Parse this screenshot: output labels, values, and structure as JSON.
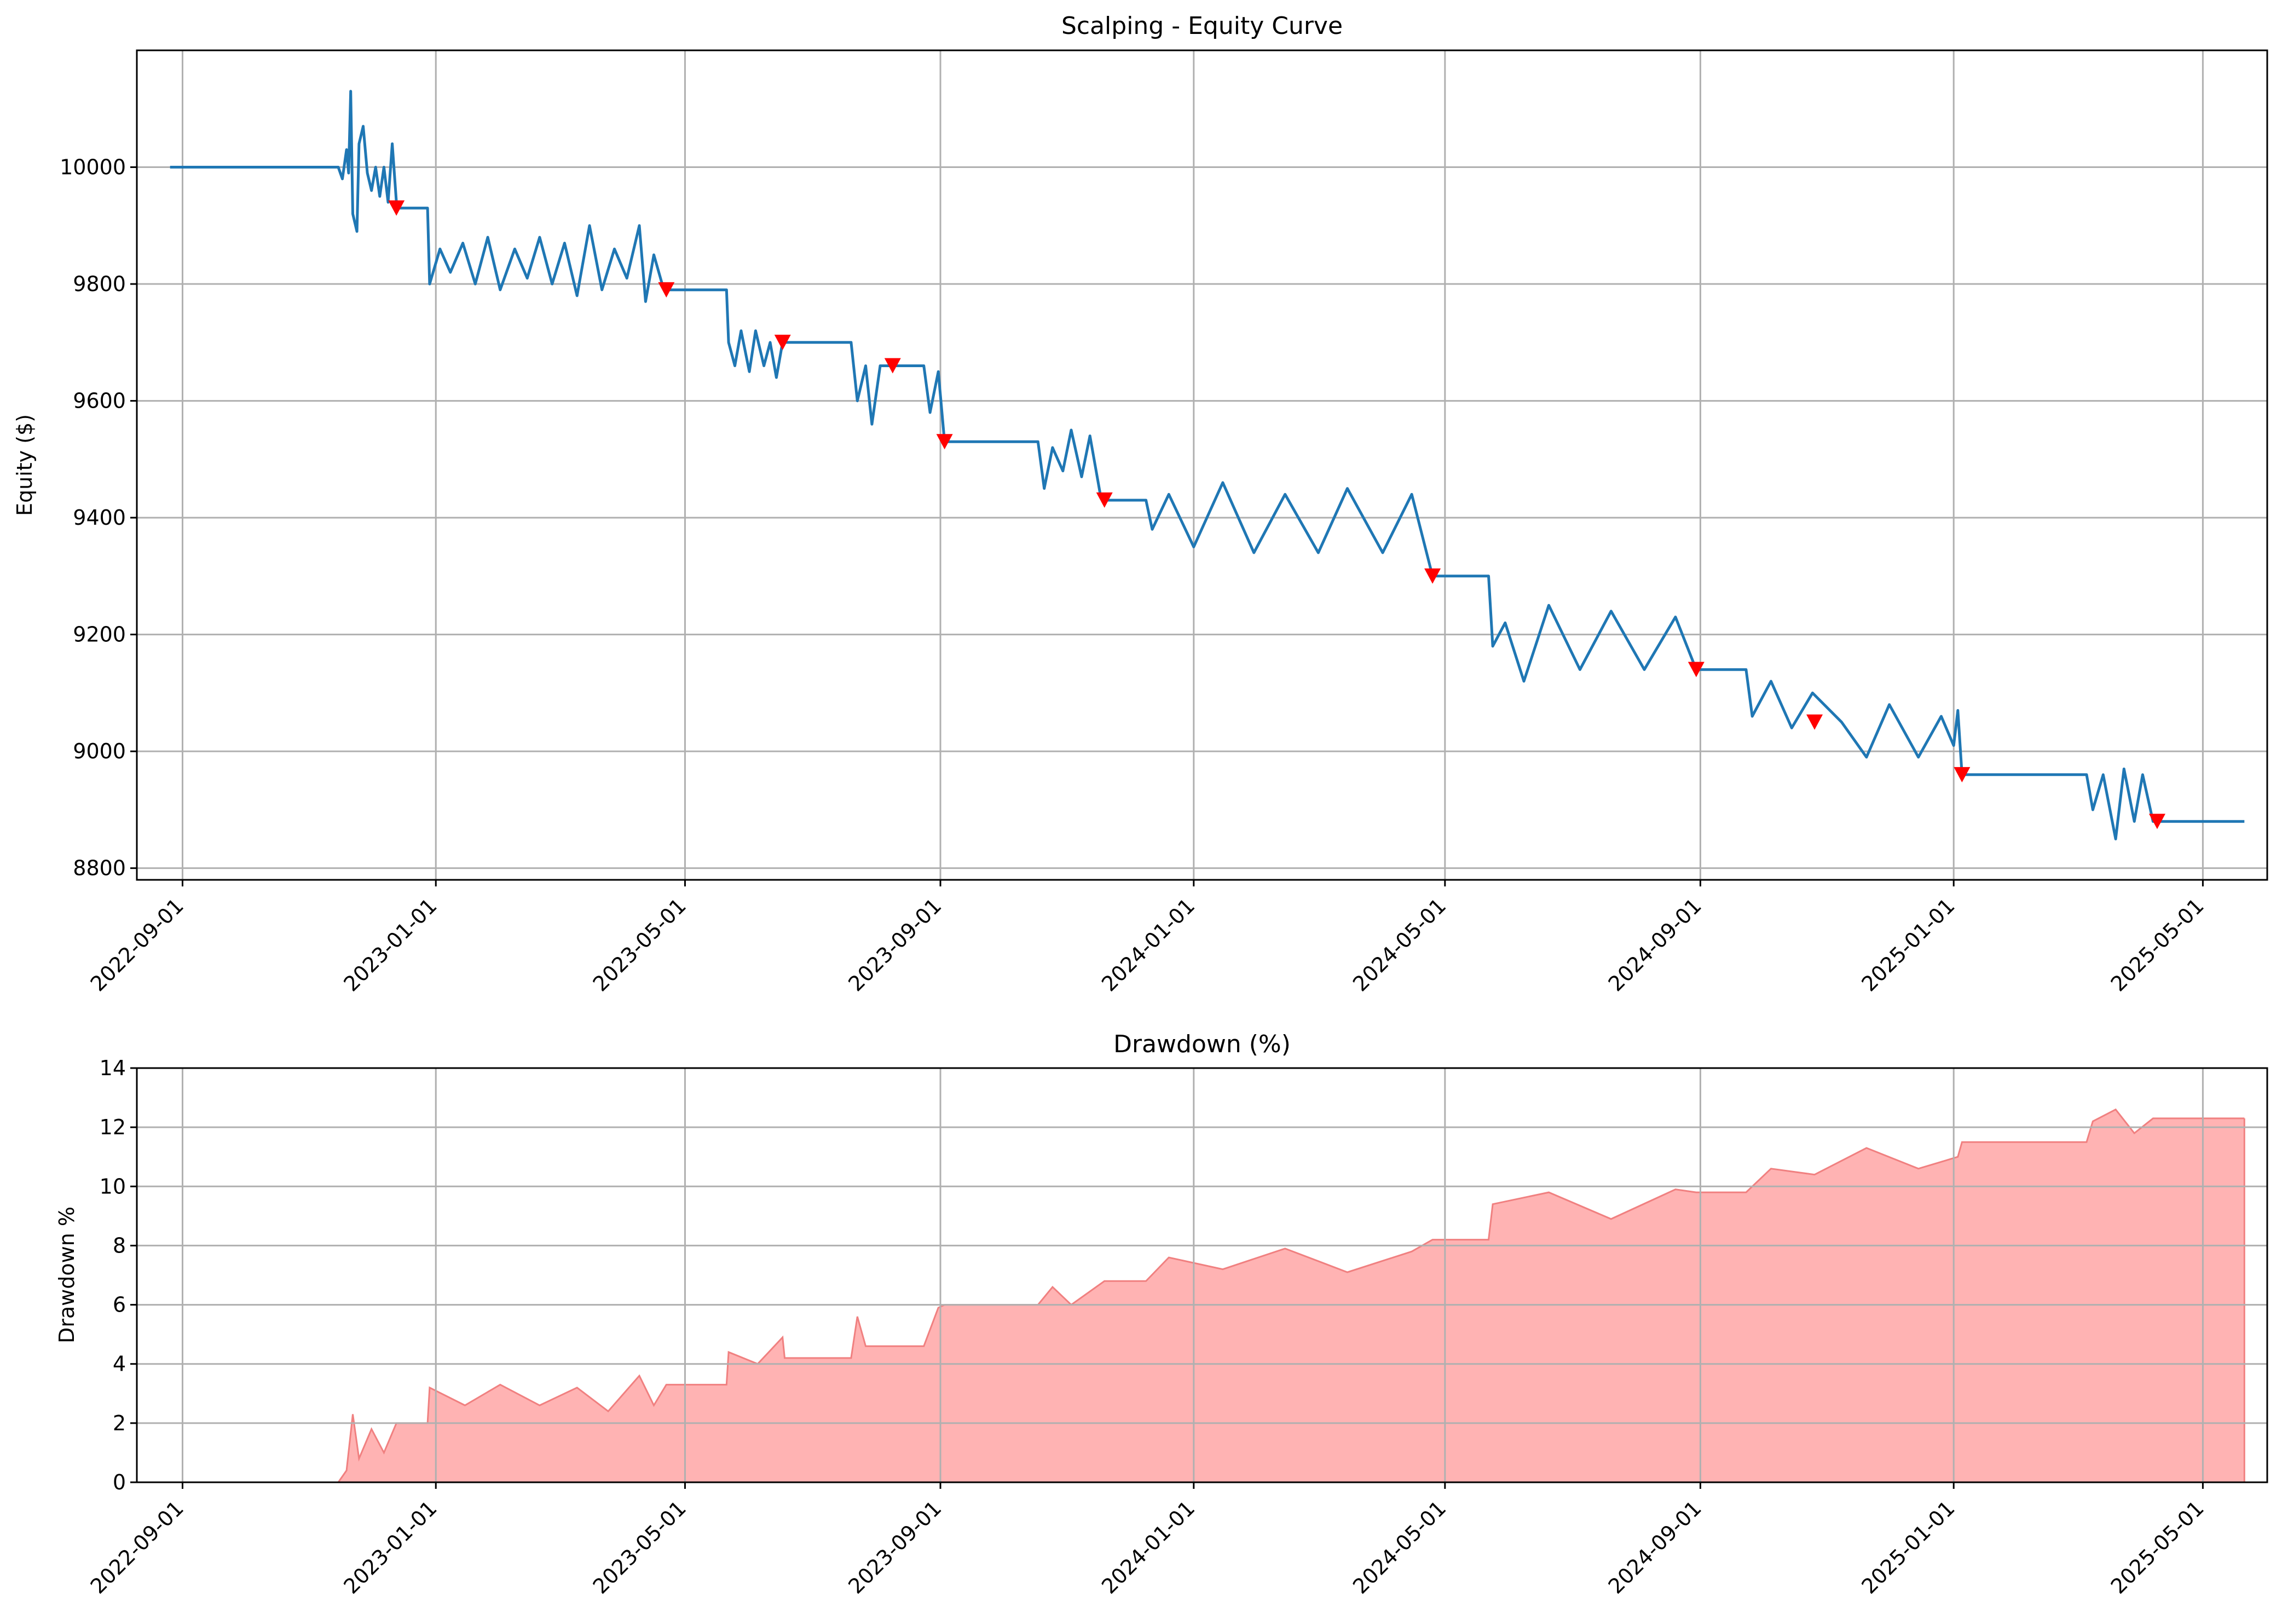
{
  "chart_data": [
    {
      "type": "line",
      "title": "Scalping - Equity Curve",
      "xlabel": "",
      "ylabel": "Equity ($)",
      "x_type": "date",
      "xlim": [
        "2022-08-10",
        "2025-06-01"
      ],
      "ylim": [
        8780,
        10200
      ],
      "x_ticks": [
        "2022-09-01",
        "2023-01-01",
        "2023-05-01",
        "2023-09-01",
        "2024-01-01",
        "2024-05-01",
        "2024-09-01",
        "2025-01-01",
        "2025-05-01"
      ],
      "y_ticks": [
        8800,
        9000,
        9200,
        9400,
        9600,
        9800,
        10000
      ],
      "grid": true,
      "legend": "none",
      "line_color": "#1f77b4",
      "marker_color": "#ff0000",
      "series": [
        {
          "values": [
            [
              "2022-08-26",
              10000
            ],
            [
              "2022-11-15",
              10000
            ],
            [
              "2022-11-17",
              9980
            ],
            [
              "2022-11-19",
              10030
            ],
            [
              "2022-11-20",
              9990
            ],
            [
              "2022-11-21",
              10130
            ],
            [
              "2022-11-22",
              9920
            ],
            [
              "2022-11-24",
              9890
            ],
            [
              "2022-11-25",
              10040
            ],
            [
              "2022-11-27",
              10070
            ],
            [
              "2022-11-29",
              9990
            ],
            [
              "2022-12-01",
              9960
            ],
            [
              "2022-12-03",
              10000
            ],
            [
              "2022-12-05",
              9950
            ],
            [
              "2022-12-07",
              10000
            ],
            [
              "2022-12-09",
              9940
            ],
            [
              "2022-12-11",
              10040
            ],
            [
              "2022-12-13",
              9940
            ],
            [
              "2022-12-14",
              9930
            ],
            [
              "2022-12-28",
              9930
            ],
            [
              "2022-12-29",
              9800
            ],
            [
              "2023-01-03",
              9860
            ],
            [
              "2023-01-08",
              9820
            ],
            [
              "2023-01-14",
              9870
            ],
            [
              "2023-01-20",
              9800
            ],
            [
              "2023-01-26",
              9880
            ],
            [
              "2023-02-01",
              9790
            ],
            [
              "2023-02-08",
              9860
            ],
            [
              "2023-02-14",
              9810
            ],
            [
              "2023-02-20",
              9880
            ],
            [
              "2023-02-26",
              9800
            ],
            [
              "2023-03-04",
              9870
            ],
            [
              "2023-03-10",
              9780
            ],
            [
              "2023-03-16",
              9900
            ],
            [
              "2023-03-22",
              9790
            ],
            [
              "2023-03-28",
              9860
            ],
            [
              "2023-04-03",
              9810
            ],
            [
              "2023-04-09",
              9900
            ],
            [
              "2023-04-12",
              9770
            ],
            [
              "2023-04-16",
              9850
            ],
            [
              "2023-04-20",
              9800
            ],
            [
              "2023-04-22",
              9790
            ],
            [
              "2023-05-21",
              9790
            ],
            [
              "2023-05-22",
              9700
            ],
            [
              "2023-05-25",
              9660
            ],
            [
              "2023-05-28",
              9720
            ],
            [
              "2023-06-01",
              9650
            ],
            [
              "2023-06-04",
              9720
            ],
            [
              "2023-06-08",
              9660
            ],
            [
              "2023-06-11",
              9700
            ],
            [
              "2023-06-14",
              9640
            ],
            [
              "2023-06-17",
              9700
            ],
            [
              "2023-07-20",
              9700
            ],
            [
              "2023-07-23",
              9600
            ],
            [
              "2023-07-27",
              9660
            ],
            [
              "2023-07-30",
              9560
            ],
            [
              "2023-08-03",
              9660
            ],
            [
              "2023-08-24",
              9660
            ],
            [
              "2023-08-27",
              9580
            ],
            [
              "2023-08-31",
              9650
            ],
            [
              "2023-09-03",
              9530
            ],
            [
              "2023-10-18",
              9530
            ],
            [
              "2023-10-21",
              9450
            ],
            [
              "2023-10-25",
              9520
            ],
            [
              "2023-10-30",
              9480
            ],
            [
              "2023-11-03",
              9550
            ],
            [
              "2023-11-08",
              9470
            ],
            [
              "2023-11-12",
              9540
            ],
            [
              "2023-11-17",
              9440
            ],
            [
              "2023-11-19",
              9430
            ],
            [
              "2023-12-09",
              9430
            ],
            [
              "2023-12-12",
              9380
            ],
            [
              "2023-12-20",
              9440
            ],
            [
              "2024-01-01",
              9350
            ],
            [
              "2024-01-15",
              9460
            ],
            [
              "2024-01-30",
              9340
            ],
            [
              "2024-02-14",
              9440
            ],
            [
              "2024-03-01",
              9340
            ],
            [
              "2024-03-15",
              9450
            ],
            [
              "2024-04-01",
              9340
            ],
            [
              "2024-04-15",
              9440
            ],
            [
              "2024-04-25",
              9300
            ],
            [
              "2024-05-22",
              9300
            ],
            [
              "2024-05-24",
              9180
            ],
            [
              "2024-05-30",
              9220
            ],
            [
              "2024-06-08",
              9120
            ],
            [
              "2024-06-20",
              9250
            ],
            [
              "2024-07-05",
              9140
            ],
            [
              "2024-07-20",
              9240
            ],
            [
              "2024-08-05",
              9140
            ],
            [
              "2024-08-20",
              9230
            ],
            [
              "2024-08-30",
              9140
            ],
            [
              "2024-09-23",
              9140
            ],
            [
              "2024-09-26",
              9060
            ],
            [
              "2024-10-05",
              9120
            ],
            [
              "2024-10-15",
              9040
            ],
            [
              "2024-10-25",
              9100
            ],
            [
              "2024-11-08",
              9050
            ],
            [
              "2024-11-20",
              8990
            ],
            [
              "2024-12-01",
              9080
            ],
            [
              "2024-12-15",
              8990
            ],
            [
              "2024-12-26",
              9060
            ],
            [
              "2025-01-01",
              9010
            ],
            [
              "2025-01-03",
              9070
            ],
            [
              "2025-01-05",
              8960
            ],
            [
              "2025-03-06",
              8960
            ],
            [
              "2025-03-09",
              8900
            ],
            [
              "2025-03-14",
              8960
            ],
            [
              "2025-03-20",
              8850
            ],
            [
              "2025-03-24",
              8970
            ],
            [
              "2025-03-29",
              8880
            ],
            [
              "2025-04-02",
              8960
            ],
            [
              "2025-04-07",
              8880
            ],
            [
              "2025-05-21",
              8880
            ]
          ]
        },
        {
          "markers": [
            [
              "2022-12-13",
              9930
            ],
            [
              "2023-04-22",
              9790
            ],
            [
              "2023-06-17",
              9700
            ],
            [
              "2023-08-09",
              9660
            ],
            [
              "2023-09-03",
              9530
            ],
            [
              "2023-11-19",
              9430
            ],
            [
              "2024-04-25",
              9300
            ],
            [
              "2024-08-30",
              9140
            ],
            [
              "2024-10-26",
              9050
            ],
            [
              "2025-01-05",
              8960
            ],
            [
              "2025-04-09",
              8880
            ]
          ]
        }
      ]
    },
    {
      "type": "area",
      "title": "Drawdown (%)",
      "xlabel": "",
      "ylabel": "Drawdown %",
      "x_type": "date",
      "xlim": [
        "2022-08-10",
        "2025-06-01"
      ],
      "ylim": [
        0,
        14
      ],
      "x_ticks": [
        "2022-09-01",
        "2023-01-01",
        "2023-05-01",
        "2023-09-01",
        "2024-01-01",
        "2024-05-01",
        "2024-09-01",
        "2025-01-01",
        "2025-05-01"
      ],
      "y_ticks": [
        0,
        2,
        4,
        6,
        8,
        10,
        12,
        14
      ],
      "grid": true,
      "legend": "none",
      "fill_color": "#ffb3b3",
      "line_color": "#f08080",
      "series": [
        {
          "values": [
            [
              "2022-08-26",
              0
            ],
            [
              "2022-11-15",
              0
            ],
            [
              "2022-11-19",
              0.4
            ],
            [
              "2022-11-22",
              2.3
            ],
            [
              "2022-11-25",
              0.8
            ],
            [
              "2022-12-01",
              1.8
            ],
            [
              "2022-12-07",
              1.0
            ],
            [
              "2022-12-13",
              2.0
            ],
            [
              "2022-12-28",
              2.0
            ],
            [
              "2022-12-29",
              3.2
            ],
            [
              "2023-01-15",
              2.6
            ],
            [
              "2023-02-01",
              3.3
            ],
            [
              "2023-02-20",
              2.6
            ],
            [
              "2023-03-10",
              3.2
            ],
            [
              "2023-03-25",
              2.4
            ],
            [
              "2023-04-09",
              3.6
            ],
            [
              "2023-04-16",
              2.6
            ],
            [
              "2023-04-22",
              3.3
            ],
            [
              "2023-05-21",
              3.3
            ],
            [
              "2023-05-22",
              4.4
            ],
            [
              "2023-06-05",
              4.0
            ],
            [
              "2023-06-17",
              4.9
            ],
            [
              "2023-06-18",
              4.2
            ],
            [
              "2023-07-20",
              4.2
            ],
            [
              "2023-07-23",
              5.6
            ],
            [
              "2023-07-27",
              4.6
            ],
            [
              "2023-08-24",
              4.6
            ],
            [
              "2023-08-31",
              5.9
            ],
            [
              "2023-09-03",
              6.0
            ],
            [
              "2023-10-18",
              6.0
            ],
            [
              "2023-10-25",
              6.6
            ],
            [
              "2023-11-03",
              6.0
            ],
            [
              "2023-11-19",
              6.8
            ],
            [
              "2023-12-09",
              6.8
            ],
            [
              "2023-12-20",
              7.6
            ],
            [
              "2024-01-15",
              7.2
            ],
            [
              "2024-02-14",
              7.9
            ],
            [
              "2024-03-15",
              7.1
            ],
            [
              "2024-04-15",
              7.8
            ],
            [
              "2024-04-25",
              8.2
            ],
            [
              "2024-05-22",
              8.2
            ],
            [
              "2024-05-24",
              9.4
            ],
            [
              "2024-06-20",
              9.8
            ],
            [
              "2024-07-20",
              8.9
            ],
            [
              "2024-08-20",
              9.9
            ],
            [
              "2024-08-30",
              9.8
            ],
            [
              "2024-09-23",
              9.8
            ],
            [
              "2024-10-05",
              10.6
            ],
            [
              "2024-10-26",
              10.4
            ],
            [
              "2024-11-20",
              11.3
            ],
            [
              "2024-12-15",
              10.6
            ],
            [
              "2025-01-03",
              11.0
            ],
            [
              "2025-01-05",
              11.5
            ],
            [
              "2025-03-06",
              11.5
            ],
            [
              "2025-03-09",
              12.2
            ],
            [
              "2025-03-20",
              12.6
            ],
            [
              "2025-03-29",
              11.8
            ],
            [
              "2025-04-07",
              12.3
            ],
            [
              "2025-05-21",
              12.3
            ]
          ]
        }
      ]
    }
  ]
}
